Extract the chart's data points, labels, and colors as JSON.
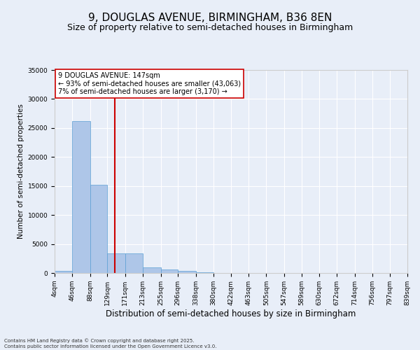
{
  "title": "9, DOUGLAS AVENUE, BIRMINGHAM, B36 8EN",
  "subtitle": "Size of property relative to semi-detached houses in Birmingham",
  "xlabel": "Distribution of semi-detached houses by size in Birmingham",
  "ylabel": "Number of semi-detached properties",
  "footer": "Contains HM Land Registry data © Crown copyright and database right 2025.\nContains public sector information licensed under the Open Government Licence v3.0.",
  "bins": [
    "4sqm",
    "46sqm",
    "88sqm",
    "129sqm",
    "171sqm",
    "213sqm",
    "255sqm",
    "296sqm",
    "338sqm",
    "380sqm",
    "422sqm",
    "463sqm",
    "505sqm",
    "547sqm",
    "589sqm",
    "630sqm",
    "672sqm",
    "714sqm",
    "756sqm",
    "797sqm",
    "839sqm"
  ],
  "bin_edges": [
    4,
    46,
    88,
    129,
    171,
    213,
    255,
    296,
    338,
    380,
    422,
    463,
    505,
    547,
    589,
    630,
    672,
    714,
    756,
    797,
    839
  ],
  "values": [
    400,
    26200,
    15200,
    3400,
    3400,
    1000,
    550,
    350,
    150,
    50,
    20,
    10,
    5,
    2,
    1,
    0,
    0,
    0,
    0,
    0
  ],
  "bar_color": "#aec6e8",
  "bar_edge_color": "#5a9fd4",
  "property_size": 147,
  "property_line_color": "#cc0000",
  "annotation_text": "9 DOUGLAS AVENUE: 147sqm\n← 93% of semi-detached houses are smaller (43,063)\n7% of semi-detached houses are larger (3,170) →",
  "annotation_box_color": "#ffffff",
  "annotation_box_edge": "#cc0000",
  "ylim": [
    0,
    35000
  ],
  "yticks": [
    0,
    5000,
    10000,
    15000,
    20000,
    25000,
    30000,
    35000
  ],
  "bg_color": "#e8eef8",
  "grid_color": "#ffffff",
  "title_fontsize": 11,
  "subtitle_fontsize": 9,
  "ylabel_fontsize": 7.5,
  "xlabel_fontsize": 8.5,
  "tick_fontsize": 6.5,
  "footer_fontsize": 5,
  "annot_fontsize": 7
}
